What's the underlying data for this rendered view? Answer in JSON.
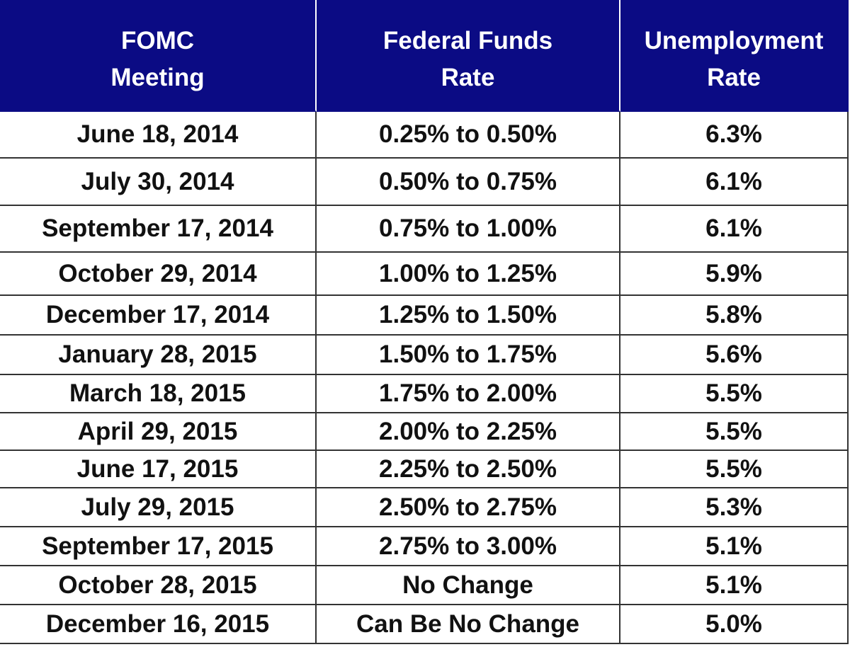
{
  "table": {
    "header": [
      [
        "FOMC",
        "Meeting"
      ],
      [
        "Federal Funds",
        "Rate"
      ],
      [
        "Unemployment",
        "Rate"
      ]
    ],
    "rows": [
      [
        "June 18, 2014",
        "0.25% to 0.50%",
        "6.3%"
      ],
      [
        "July 30, 2014",
        "0.50% to 0.75%",
        "6.1%"
      ],
      [
        "September 17, 2014",
        "0.75% to 1.00%",
        "6.1%"
      ],
      [
        "October 29, 2014",
        "1.00% to 1.25%",
        "5.9%"
      ],
      [
        "December 17, 2014",
        "1.25% to 1.50%",
        "5.8%"
      ],
      [
        "January 28, 2015",
        "1.50% to 1.75%",
        "5.6%"
      ],
      [
        "March 18, 2015",
        "1.75% to 2.00%",
        "5.5%"
      ],
      [
        "April 29, 2015",
        "2.00% to 2.25%",
        "5.5%"
      ],
      [
        "June 17, 2015",
        "2.25% to 2.50%",
        "5.5%"
      ],
      [
        "July 29, 2015",
        "2.50% to 2.75%",
        "5.3%"
      ],
      [
        "September 17, 2015",
        "2.75% to 3.00%",
        "5.1%"
      ],
      [
        "October 28, 2015",
        "No Change",
        "5.1%"
      ],
      [
        "December 16, 2015",
        "Can Be No Change",
        "5.0%"
      ]
    ]
  }
}
